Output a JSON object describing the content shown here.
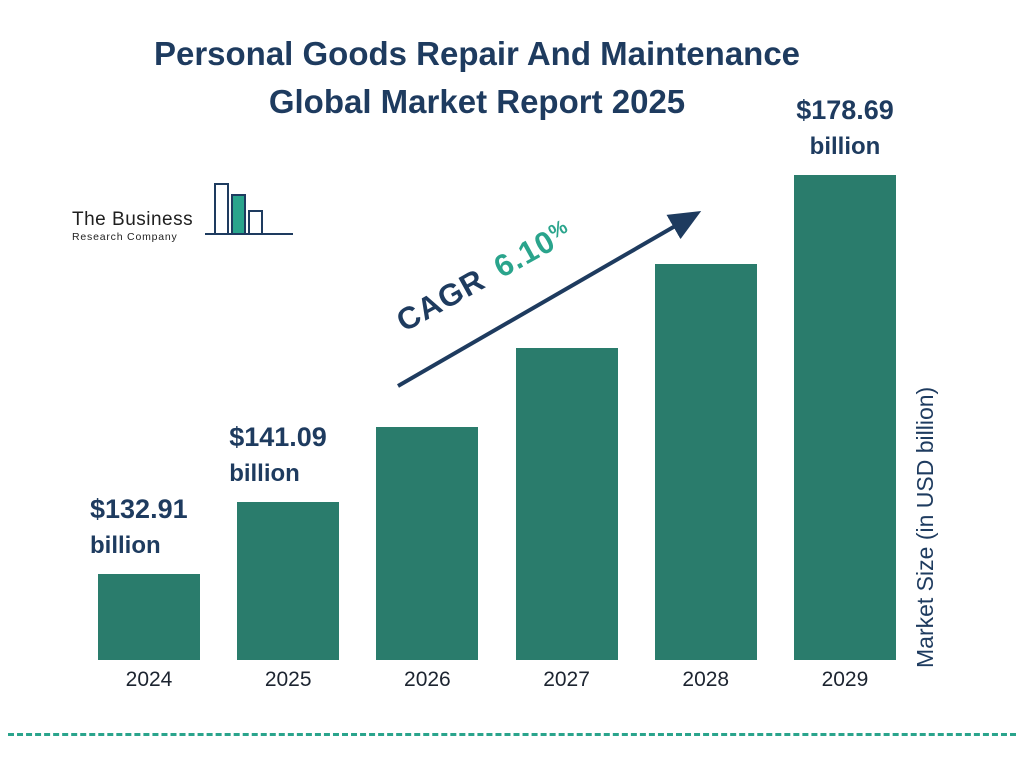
{
  "title": {
    "line1": "Personal Goods Repair And Maintenance",
    "line2": "Global Market Report 2025"
  },
  "logo": {
    "name_line1": "The Business",
    "name_line2": "Research Company"
  },
  "cagr": {
    "label": "CAGR",
    "value": "6.10",
    "percent_sign": "%"
  },
  "y_axis_label": "Market Size (in USD billion)",
  "colors": {
    "navy": "#1e3b5f",
    "bar_teal": "#2a7c6c",
    "accent_teal": "#2aa48c",
    "text_dark": "#1c2430"
  },
  "chart_data": {
    "type": "bar",
    "title": "Personal Goods Repair And Maintenance Global Market Report 2025",
    "categories": [
      "2024",
      "2025",
      "2026",
      "2027",
      "2028",
      "2029"
    ],
    "values": [
      132.91,
      141.09,
      149.7,
      158.8,
      168.5,
      178.69
    ],
    "unit": "USD billion",
    "xlabel": "",
    "ylabel": "Market Size (in USD billion)",
    "ylim": [
      123,
      185
    ],
    "grid": false,
    "legend": false,
    "bar_color": "#2a7c6c",
    "cagr_percent": 6.1,
    "annotations": [
      {
        "index": 0,
        "value_text": "$132.91",
        "unit_text": "billion",
        "align": "left"
      },
      {
        "index": 1,
        "value_text": "$141.09",
        "unit_text": "billion",
        "align": "left"
      },
      {
        "index": 5,
        "value_text": "$178.69",
        "unit_text": "billion",
        "align": "center"
      }
    ]
  }
}
